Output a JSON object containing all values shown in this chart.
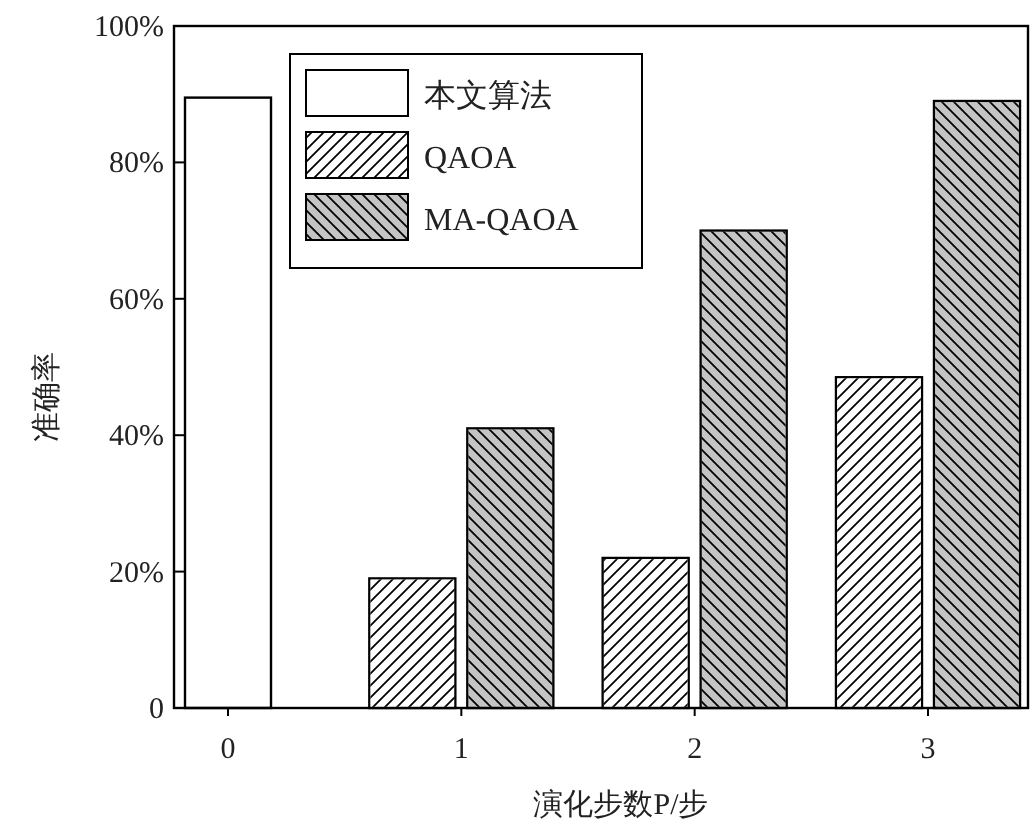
{
  "chart_data": {
    "type": "bar",
    "categories": [
      "0",
      "1",
      "2",
      "3"
    ],
    "xlabel": "演化步数P/步",
    "ylabel": "准确率",
    "ylim": [
      0,
      100
    ],
    "yticks": [
      {
        "value": 0,
        "label": "0"
      },
      {
        "value": 20,
        "label": "20%"
      },
      {
        "value": 40,
        "label": "40%"
      },
      {
        "value": 60,
        "label": "60%"
      },
      {
        "value": 80,
        "label": "80%"
      },
      {
        "value": 100,
        "label": "100%"
      }
    ],
    "legend": "top left",
    "series": [
      {
        "name": "本文算法",
        "color": "#ffffff",
        "values": [
          89.5,
          null,
          null,
          null
        ]
      },
      {
        "name": "QAOA",
        "color": "#ffffff",
        "values": [
          null,
          19,
          22,
          48.5
        ]
      },
      {
        "name": "MA-QAOA",
        "color": "#c4c4c4",
        "values": [
          null,
          41,
          70,
          89
        ]
      }
    ]
  }
}
